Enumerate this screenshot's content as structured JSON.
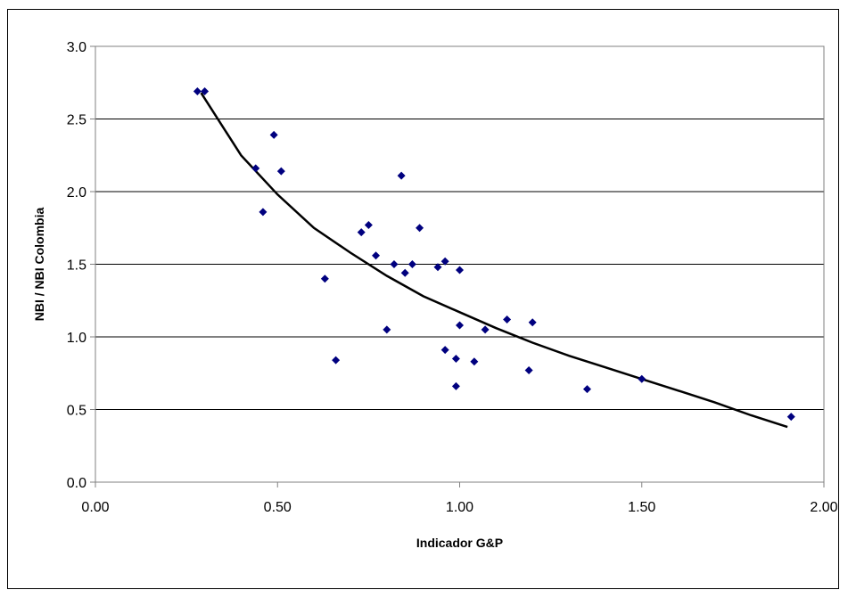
{
  "chart_data": {
    "type": "scatter",
    "title": "",
    "xlabel": "Indicador G&P",
    "ylabel": "NBI / NBI Colombia",
    "xlim": [
      0,
      2
    ],
    "ylim": [
      0,
      3
    ],
    "xticks": [
      "0.00",
      "0.50",
      "1.00",
      "1.50",
      "2.00"
    ],
    "xtick_values": [
      0,
      0.5,
      1,
      1.5,
      2
    ],
    "yticks": [
      "0.0",
      "0.5",
      "1.0",
      "1.5",
      "2.0",
      "2.5",
      "3.0"
    ],
    "ytick_values": [
      0,
      0.5,
      1,
      1.5,
      2,
      2.5,
      3
    ],
    "grid": "horizontal",
    "legend": "none",
    "marker_color": "#00007F",
    "trend_color": "#000000",
    "series": [
      {
        "points": [
          [
            0.28,
            2.69
          ],
          [
            0.3,
            2.69
          ],
          [
            0.44,
            2.16
          ],
          [
            0.46,
            1.86
          ],
          [
            0.49,
            2.39
          ],
          [
            0.51,
            2.14
          ],
          [
            0.63,
            1.4
          ],
          [
            0.66,
            0.84
          ],
          [
            0.73,
            1.72
          ],
          [
            0.75,
            1.77
          ],
          [
            0.77,
            1.56
          ],
          [
            0.8,
            1.05
          ],
          [
            0.82,
            1.5
          ],
          [
            0.84,
            2.11
          ],
          [
            0.85,
            1.44
          ],
          [
            0.87,
            1.5
          ],
          [
            0.89,
            1.75
          ],
          [
            0.94,
            1.48
          ],
          [
            0.96,
            1.52
          ],
          [
            0.96,
            0.91
          ],
          [
            0.99,
            0.85
          ],
          [
            0.99,
            0.66
          ],
          [
            1.0,
            1.46
          ],
          [
            1.0,
            1.08
          ],
          [
            1.04,
            0.83
          ],
          [
            1.07,
            1.05
          ],
          [
            1.13,
            1.12
          ],
          [
            1.19,
            0.77
          ],
          [
            1.2,
            1.1
          ],
          [
            1.35,
            0.64
          ],
          [
            1.5,
            0.71
          ],
          [
            1.91,
            0.45
          ]
        ]
      }
    ],
    "trendline": {
      "type": "power",
      "x": [
        0.29,
        0.4,
        0.5,
        0.6,
        0.7,
        0.8,
        0.9,
        1.0,
        1.1,
        1.2,
        1.3,
        1.4,
        1.5,
        1.6,
        1.7,
        1.8,
        1.9
      ],
      "y": [
        2.68,
        2.25,
        1.98,
        1.75,
        1.58,
        1.42,
        1.28,
        1.17,
        1.06,
        0.96,
        0.87,
        0.79,
        0.71,
        0.63,
        0.55,
        0.46,
        0.38
      ]
    }
  }
}
